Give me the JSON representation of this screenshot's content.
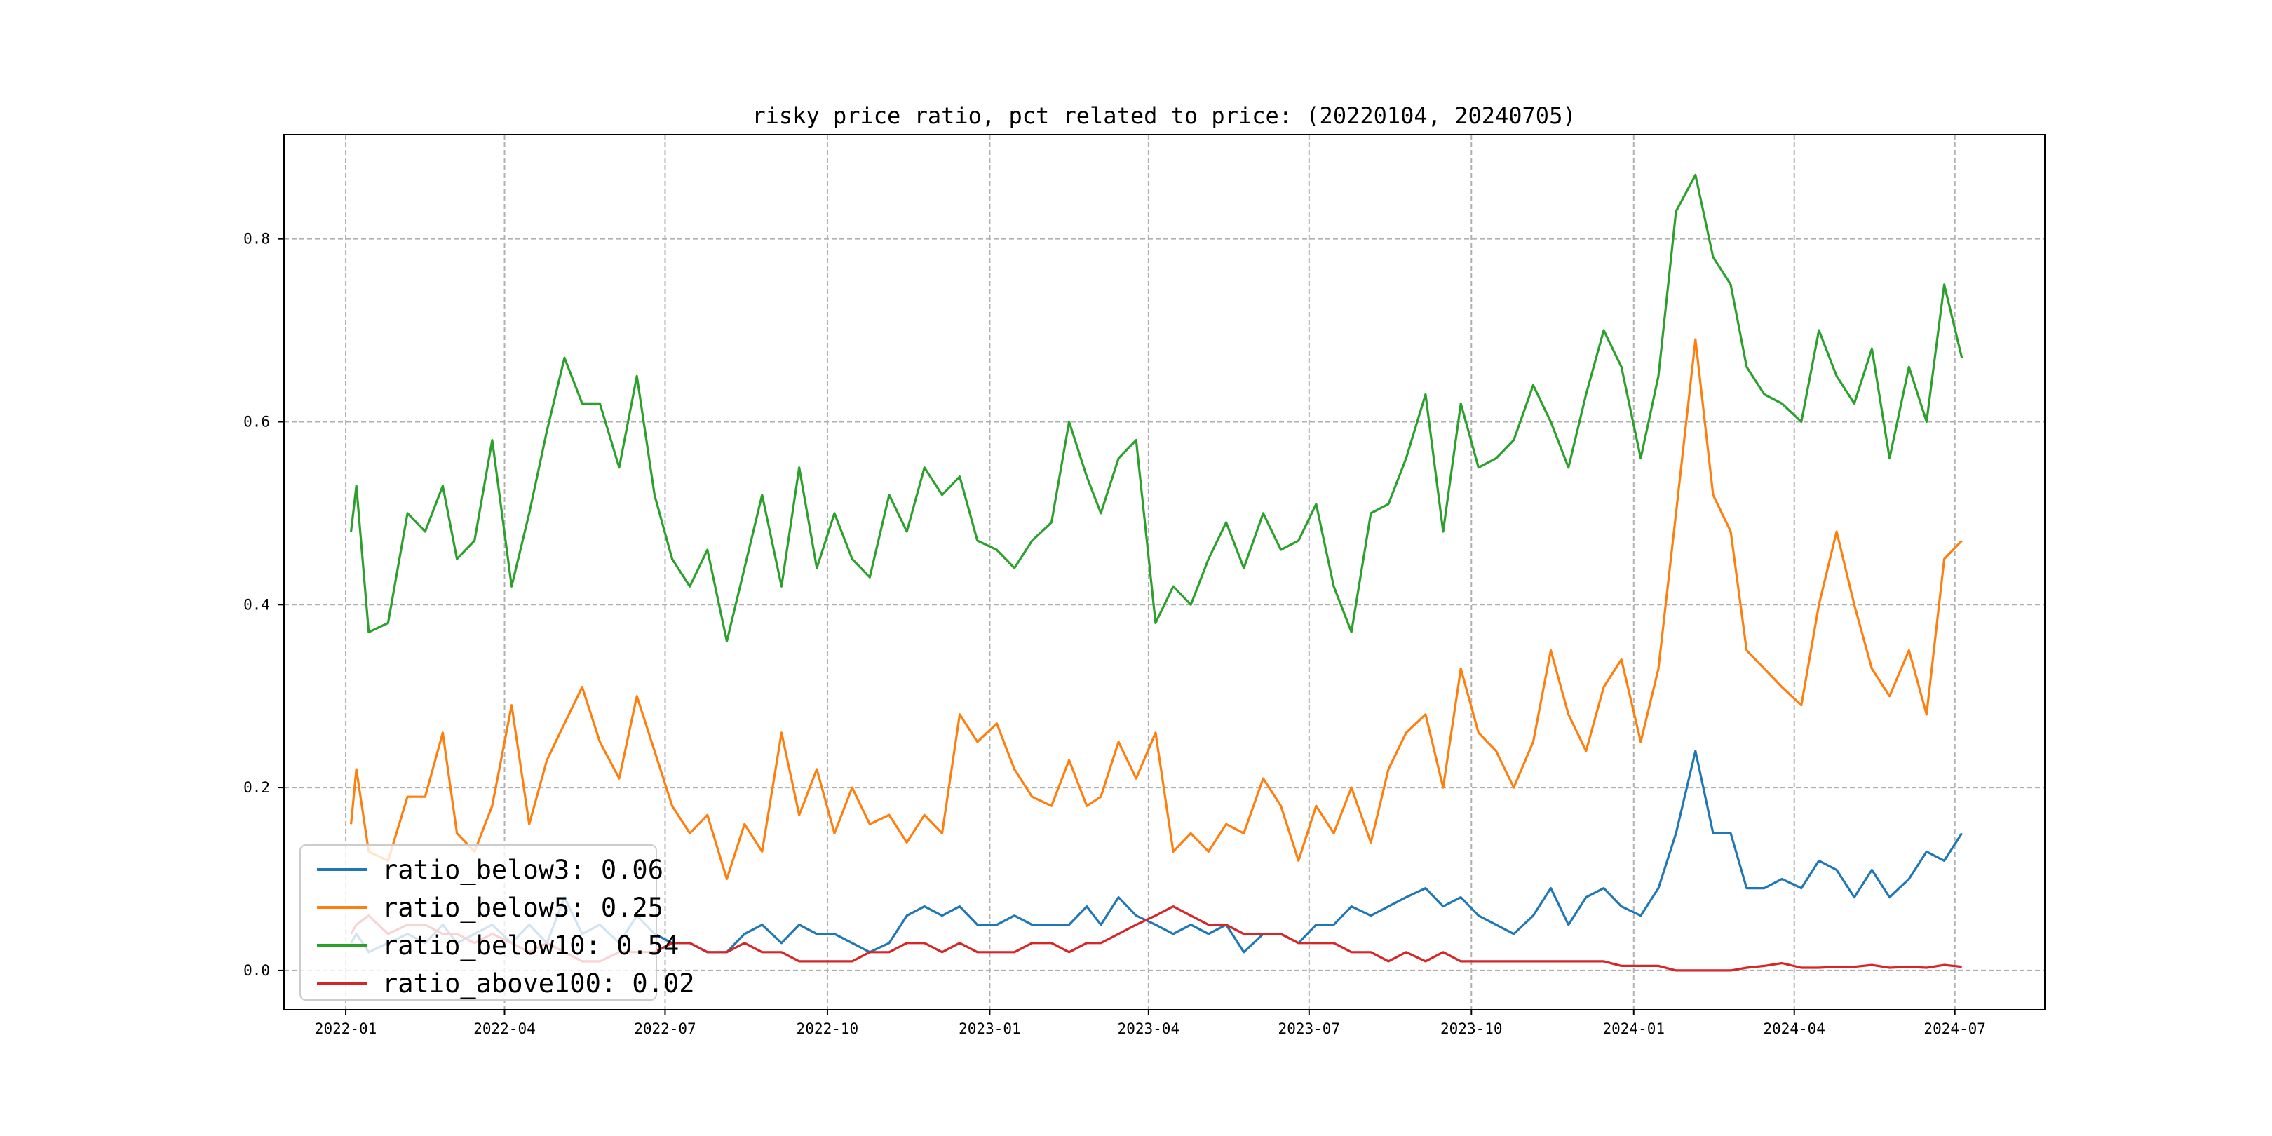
{
  "chart_data": {
    "type": "line",
    "title": "risky price ratio, pct related to price: (20220104, 20240705)",
    "xlabel": "",
    "ylabel": "",
    "xlim": [
      "2021-11-27",
      "2024-08-21"
    ],
    "ylim": [
      -0.043,
      0.914
    ],
    "grid": true,
    "legend_placement": "lower-left",
    "x_tick_labels": [
      "2022-01",
      "2022-04",
      "2022-07",
      "2022-10",
      "2023-01",
      "2023-04",
      "2023-07",
      "2023-10",
      "2024-01",
      "2024-04",
      "2024-07"
    ],
    "y_ticks": [
      0.0,
      0.2,
      0.4,
      0.6,
      0.8
    ],
    "y_tick_labels": [
      "0.0",
      "0.2",
      "0.4",
      "0.6",
      "0.8"
    ],
    "x": [
      "2022-01-04",
      "2022-01-07",
      "2022-01-14",
      "2022-01-25",
      "2022-02-05",
      "2022-02-15",
      "2022-02-25",
      "2022-03-05",
      "2022-03-15",
      "2022-03-25",
      "2022-04-05",
      "2022-04-15",
      "2022-04-25",
      "2022-05-05",
      "2022-05-15",
      "2022-05-25",
      "2022-06-05",
      "2022-06-15",
      "2022-06-25",
      "2022-07-05",
      "2022-07-15",
      "2022-07-25",
      "2022-08-05",
      "2022-08-15",
      "2022-08-25",
      "2022-09-05",
      "2022-09-15",
      "2022-09-25",
      "2022-10-05",
      "2022-10-15",
      "2022-10-25",
      "2022-11-05",
      "2022-11-15",
      "2022-11-25",
      "2022-12-05",
      "2022-12-15",
      "2022-12-25",
      "2023-01-05",
      "2023-01-15",
      "2023-01-25",
      "2023-02-05",
      "2023-02-15",
      "2023-02-25",
      "2023-03-05",
      "2023-03-15",
      "2023-03-25",
      "2023-04-05",
      "2023-04-15",
      "2023-04-25",
      "2023-05-05",
      "2023-05-15",
      "2023-05-25",
      "2023-06-05",
      "2023-06-15",
      "2023-06-25",
      "2023-07-05",
      "2023-07-15",
      "2023-07-25",
      "2023-08-05",
      "2023-08-15",
      "2023-08-25",
      "2023-09-05",
      "2023-09-15",
      "2023-09-25",
      "2023-10-05",
      "2023-10-15",
      "2023-10-25",
      "2023-11-05",
      "2023-11-15",
      "2023-11-25",
      "2023-12-05",
      "2023-12-15",
      "2023-12-25",
      "2024-01-05",
      "2024-01-15",
      "2024-01-25",
      "2024-02-05",
      "2024-02-15",
      "2024-02-25",
      "2024-03-05",
      "2024-03-15",
      "2024-03-25",
      "2024-04-05",
      "2024-04-15",
      "2024-04-25",
      "2024-05-05",
      "2024-05-15",
      "2024-05-25",
      "2024-06-05",
      "2024-06-15",
      "2024-06-25",
      "2024-07-05"
    ],
    "series": [
      {
        "name": "ratio_below3",
        "legend_label": "ratio_below3: 0.06",
        "color": "#1f77b4",
        "values": [
          0.03,
          0.04,
          0.02,
          0.03,
          0.04,
          0.03,
          0.05,
          0.03,
          0.04,
          0.05,
          0.03,
          0.05,
          0.03,
          0.08,
          0.04,
          0.05,
          0.03,
          0.06,
          0.04,
          0.03,
          0.03,
          0.02,
          0.02,
          0.04,
          0.05,
          0.03,
          0.05,
          0.04,
          0.04,
          0.03,
          0.02,
          0.03,
          0.06,
          0.07,
          0.06,
          0.07,
          0.05,
          0.05,
          0.06,
          0.05,
          0.05,
          0.05,
          0.07,
          0.05,
          0.08,
          0.06,
          0.05,
          0.04,
          0.05,
          0.04,
          0.05,
          0.02,
          0.04,
          0.04,
          0.03,
          0.05,
          0.05,
          0.07,
          0.06,
          0.07,
          0.08,
          0.09,
          0.07,
          0.08,
          0.06,
          0.05,
          0.04,
          0.06,
          0.09,
          0.05,
          0.08,
          0.09,
          0.07,
          0.06,
          0.09,
          0.15,
          0.24,
          0.15,
          0.15,
          0.09,
          0.09,
          0.1,
          0.09,
          0.12,
          0.11,
          0.08,
          0.11,
          0.08,
          0.1,
          0.13,
          0.12,
          0.15
        ]
      },
      {
        "name": "ratio_below5",
        "legend_label": "ratio_below5: 0.25",
        "color": "#ff7f0e",
        "values": [
          0.16,
          0.22,
          0.13,
          0.12,
          0.19,
          0.19,
          0.26,
          0.15,
          0.13,
          0.18,
          0.29,
          0.16,
          0.23,
          0.27,
          0.31,
          0.25,
          0.21,
          0.3,
          0.24,
          0.18,
          0.15,
          0.17,
          0.1,
          0.16,
          0.13,
          0.26,
          0.17,
          0.22,
          0.15,
          0.2,
          0.16,
          0.17,
          0.14,
          0.17,
          0.15,
          0.28,
          0.25,
          0.27,
          0.22,
          0.19,
          0.18,
          0.23,
          0.18,
          0.19,
          0.25,
          0.21,
          0.26,
          0.13,
          0.15,
          0.13,
          0.16,
          0.15,
          0.21,
          0.18,
          0.12,
          0.18,
          0.15,
          0.2,
          0.14,
          0.22,
          0.26,
          0.28,
          0.2,
          0.33,
          0.26,
          0.24,
          0.2,
          0.25,
          0.35,
          0.28,
          0.24,
          0.31,
          0.34,
          0.25,
          0.33,
          0.5,
          0.69,
          0.52,
          0.48,
          0.35,
          0.33,
          0.31,
          0.29,
          0.4,
          0.48,
          0.4,
          0.33,
          0.3,
          0.35,
          0.28,
          0.45,
          0.47
        ]
      },
      {
        "name": "ratio_below10",
        "legend_label": "ratio_below10: 0.54",
        "color": "#2ca02c",
        "values": [
          0.48,
          0.53,
          0.37,
          0.38,
          0.5,
          0.48,
          0.53,
          0.45,
          0.47,
          0.58,
          0.42,
          0.5,
          0.59,
          0.67,
          0.62,
          0.62,
          0.55,
          0.65,
          0.52,
          0.45,
          0.42,
          0.46,
          0.36,
          0.44,
          0.52,
          0.42,
          0.55,
          0.44,
          0.5,
          0.45,
          0.43,
          0.52,
          0.48,
          0.55,
          0.52,
          0.54,
          0.47,
          0.46,
          0.44,
          0.47,
          0.49,
          0.6,
          0.54,
          0.5,
          0.56,
          0.58,
          0.38,
          0.42,
          0.4,
          0.45,
          0.49,
          0.44,
          0.5,
          0.46,
          0.47,
          0.51,
          0.42,
          0.37,
          0.5,
          0.51,
          0.56,
          0.63,
          0.48,
          0.62,
          0.55,
          0.56,
          0.58,
          0.64,
          0.6,
          0.55,
          0.63,
          0.7,
          0.66,
          0.56,
          0.65,
          0.83,
          0.87,
          0.78,
          0.75,
          0.66,
          0.63,
          0.62,
          0.6,
          0.7,
          0.65,
          0.62,
          0.68,
          0.56,
          0.66,
          0.6,
          0.75,
          0.67
        ]
      },
      {
        "name": "ratio_above100",
        "legend_label": "ratio_above100: 0.02",
        "color": "#d62728",
        "values": [
          0.04,
          0.05,
          0.06,
          0.04,
          0.05,
          0.05,
          0.04,
          0.04,
          0.03,
          0.04,
          0.03,
          0.02,
          0.03,
          0.02,
          0.01,
          0.01,
          0.02,
          0.02,
          0.02,
          0.03,
          0.03,
          0.02,
          0.02,
          0.03,
          0.02,
          0.02,
          0.01,
          0.01,
          0.01,
          0.01,
          0.02,
          0.02,
          0.03,
          0.03,
          0.02,
          0.03,
          0.02,
          0.02,
          0.02,
          0.03,
          0.03,
          0.02,
          0.03,
          0.03,
          0.04,
          0.05,
          0.06,
          0.07,
          0.06,
          0.05,
          0.05,
          0.04,
          0.04,
          0.04,
          0.03,
          0.03,
          0.03,
          0.02,
          0.02,
          0.01,
          0.02,
          0.01,
          0.02,
          0.01,
          0.01,
          0.01,
          0.01,
          0.01,
          0.01,
          0.01,
          0.01,
          0.01,
          0.005,
          0.005,
          0.005,
          0.0,
          0.0,
          0.0,
          0.0,
          0.003,
          0.005,
          0.008,
          0.003,
          0.003,
          0.004,
          0.004,
          0.006,
          0.003,
          0.004,
          0.003,
          0.006,
          0.004
        ]
      }
    ]
  }
}
